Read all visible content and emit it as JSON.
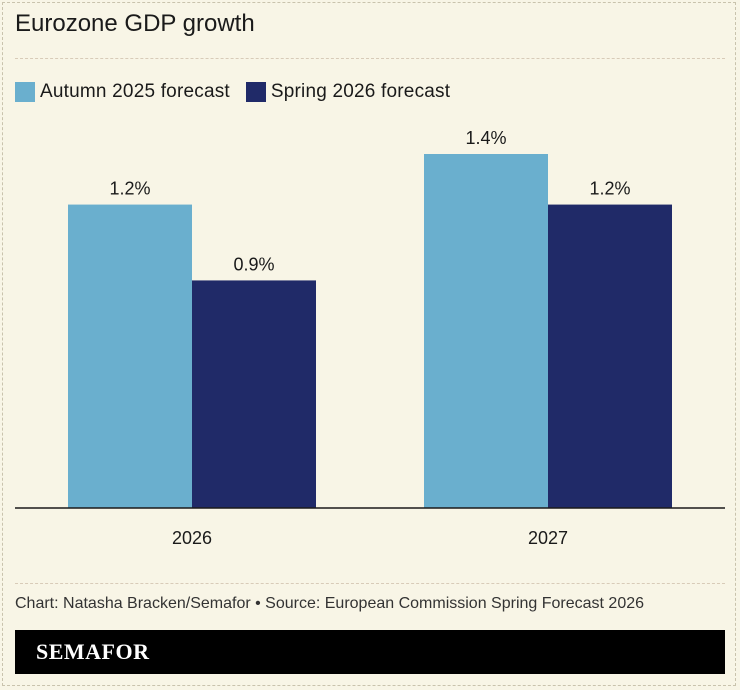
{
  "title": "Eurozone GDP growth",
  "footer": "Chart: Natasha Bracken/Semafor • Source: European Commission Spring Forecast 2026",
  "brand": "SEMAFOR",
  "chart_data": {
    "type": "bar",
    "categories": [
      "2026",
      "2027"
    ],
    "series": [
      {
        "name": "Autumn 2025 forecast",
        "color": "#6aafce",
        "values": [
          1.2,
          1.4
        ],
        "labels": [
          "1.2%",
          "1.4%"
        ]
      },
      {
        "name": "Spring 2026 forecast",
        "color": "#202a68",
        "values": [
          0.9,
          1.2
        ],
        "labels": [
          "0.9%",
          "1.2%"
        ]
      }
    ],
    "ylim": [
      0,
      1.4
    ],
    "grid": false,
    "legend_position": "top-left"
  }
}
